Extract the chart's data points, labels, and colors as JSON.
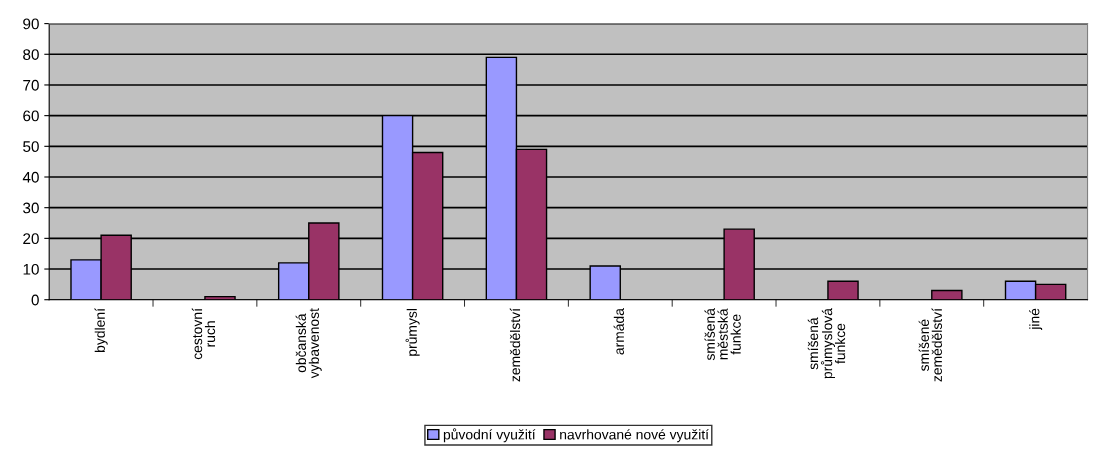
{
  "chart_data": {
    "type": "bar",
    "categories": [
      "bydlení",
      "cestovní\nruch",
      "občanská\nvybavenost",
      "průmysl",
      "zemědělství",
      "armáda",
      "smíšená\nměstská\nfunkce",
      "smíšená\nprůmyslová\nfunkce",
      "smíšené\nzemědělství",
      "jiné"
    ],
    "series": [
      {
        "name": "původní využití",
        "color": "#9999ff",
        "values": [
          13,
          null,
          12,
          60,
          79,
          11,
          null,
          null,
          null,
          6
        ]
      },
      {
        "name": "navrhované nové využití",
        "color": "#993366",
        "values": [
          21,
          1,
          25,
          48,
          49,
          null,
          23,
          6,
          3,
          5
        ]
      }
    ],
    "ylim": [
      0,
      90
    ],
    "yticks": [
      0,
      10,
      20,
      30,
      40,
      50,
      60,
      70,
      80,
      90
    ],
    "grid": "y",
    "legend": "bottom"
  }
}
